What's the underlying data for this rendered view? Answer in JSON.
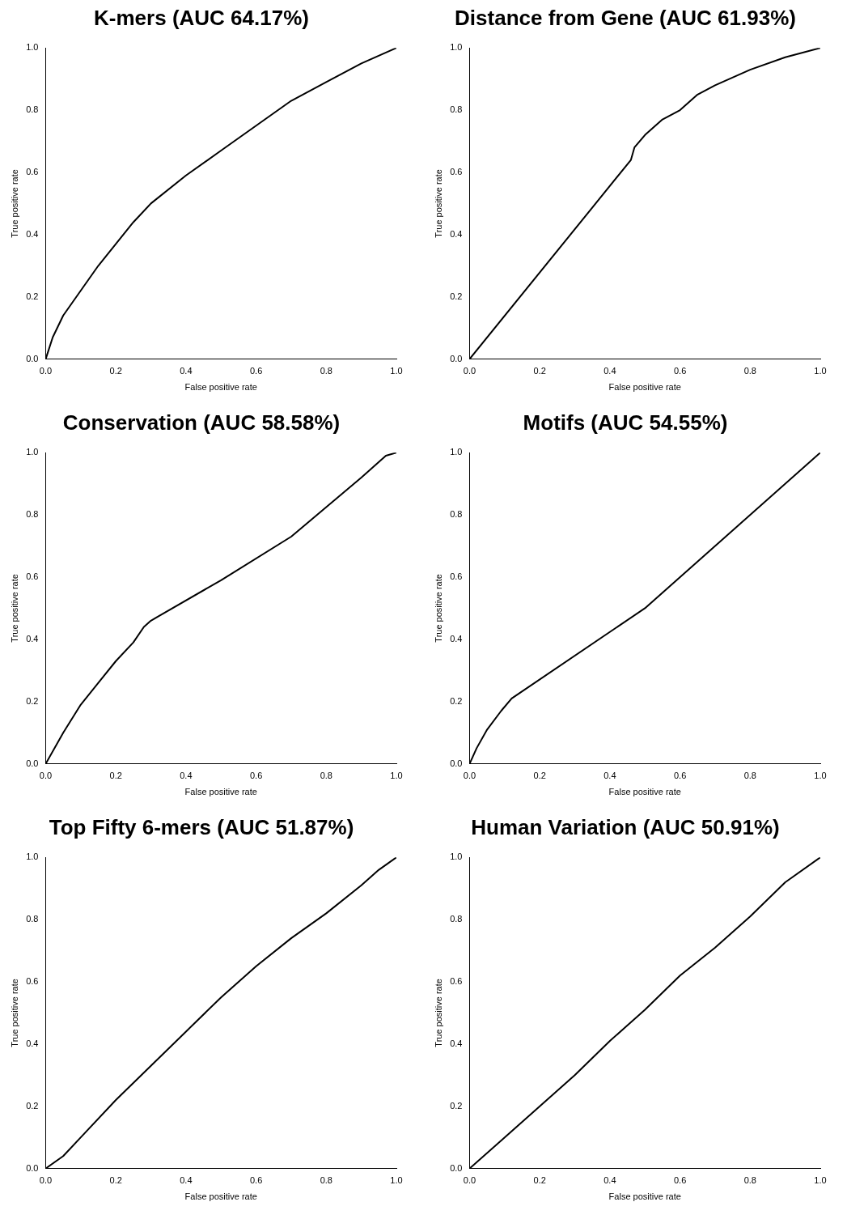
{
  "chart_data": [
    {
      "type": "line",
      "title": "K-mers (AUC 64.17%)",
      "xlabel": "False positive rate",
      "ylabel": "True positive rate",
      "xlim": [
        0,
        1
      ],
      "ylim": [
        0,
        1
      ],
      "xticks": [
        {
          "value": 0,
          "label": "0.0"
        },
        {
          "value": 0.2,
          "label": "0.2"
        },
        {
          "value": 0.4,
          "label": "0.4"
        },
        {
          "value": 0.6,
          "label": "0.6"
        },
        {
          "value": 0.8,
          "label": "0.8"
        },
        {
          "value": 1,
          "label": "1.0"
        }
      ],
      "yticks": [
        {
          "value": 0,
          "label": "0.0"
        },
        {
          "value": 0.2,
          "label": "0.2"
        },
        {
          "value": 0.4,
          "label": "0.4"
        },
        {
          "value": 0.6,
          "label": "0.6"
        },
        {
          "value": 0.8,
          "label": "0.8"
        },
        {
          "value": 1,
          "label": "1.0"
        }
      ],
      "grid": false,
      "legend": false,
      "marker": "none",
      "line_style": "solid",
      "series": [
        {
          "color": "#000000",
          "x": [
            0,
            0.02,
            0.05,
            0.1,
            0.15,
            0.2,
            0.25,
            0.3,
            0.4,
            0.5,
            0.6,
            0.7,
            0.8,
            0.9,
            1
          ],
          "values": [
            0,
            0.07,
            0.14,
            0.22,
            0.3,
            0.37,
            0.44,
            0.5,
            0.59,
            0.67,
            0.75,
            0.83,
            0.89,
            0.95,
            1
          ]
        }
      ]
    },
    {
      "type": "line",
      "title": "Distance from Gene (AUC 61.93%)",
      "xlabel": "False positive rate",
      "ylabel": "True positive rate",
      "xlim": [
        0,
        1
      ],
      "ylim": [
        0,
        1
      ],
      "xticks": [
        {
          "value": 0,
          "label": "0.0"
        },
        {
          "value": 0.2,
          "label": "0.2"
        },
        {
          "value": 0.4,
          "label": "0.4"
        },
        {
          "value": 0.6,
          "label": "0.6"
        },
        {
          "value": 0.8,
          "label": "0.8"
        },
        {
          "value": 1,
          "label": "1.0"
        }
      ],
      "yticks": [
        {
          "value": 0,
          "label": "0.0"
        },
        {
          "value": 0.2,
          "label": "0.2"
        },
        {
          "value": 0.4,
          "label": "0.4"
        },
        {
          "value": 0.6,
          "label": "0.6"
        },
        {
          "value": 0.8,
          "label": "0.8"
        },
        {
          "value": 1,
          "label": "1.0"
        }
      ],
      "grid": false,
      "legend": false,
      "marker": "none",
      "line_style": "solid",
      "series": [
        {
          "color": "#000000",
          "x": [
            0,
            0.46,
            0.47,
            0.5,
            0.55,
            0.6,
            0.65,
            0.7,
            0.8,
            0.9,
            1
          ],
          "values": [
            0,
            0.64,
            0.68,
            0.72,
            0.77,
            0.8,
            0.85,
            0.88,
            0.93,
            0.97,
            1
          ]
        }
      ]
    },
    {
      "type": "line",
      "title": "Conservation (AUC 58.58%)",
      "xlabel": "False positive rate",
      "ylabel": "True positive rate",
      "xlim": [
        0,
        1
      ],
      "ylim": [
        0,
        1
      ],
      "xticks": [
        {
          "value": 0,
          "label": "0.0"
        },
        {
          "value": 0.2,
          "label": "0.2"
        },
        {
          "value": 0.4,
          "label": "0.4"
        },
        {
          "value": 0.6,
          "label": "0.6"
        },
        {
          "value": 0.8,
          "label": "0.8"
        },
        {
          "value": 1,
          "label": "1.0"
        }
      ],
      "yticks": [
        {
          "value": 0,
          "label": "0.0"
        },
        {
          "value": 0.2,
          "label": "0.2"
        },
        {
          "value": 0.4,
          "label": "0.4"
        },
        {
          "value": 0.6,
          "label": "0.6"
        },
        {
          "value": 0.8,
          "label": "0.8"
        },
        {
          "value": 1,
          "label": "1.0"
        }
      ],
      "grid": false,
      "legend": false,
      "marker": "none",
      "line_style": "solid",
      "series": [
        {
          "color": "#000000",
          "x": [
            0,
            0.05,
            0.1,
            0.15,
            0.2,
            0.25,
            0.28,
            0.3,
            0.5,
            0.7,
            0.9,
            0.97,
            1
          ],
          "values": [
            0,
            0.1,
            0.19,
            0.26,
            0.33,
            0.39,
            0.44,
            0.46,
            0.59,
            0.73,
            0.92,
            0.99,
            1
          ]
        }
      ]
    },
    {
      "type": "line",
      "title": "Motifs (AUC 54.55%)",
      "xlabel": "False positive rate",
      "ylabel": "True positive rate",
      "xlim": [
        0,
        1
      ],
      "ylim": [
        0,
        1
      ],
      "xticks": [
        {
          "value": 0,
          "label": "0.0"
        },
        {
          "value": 0.2,
          "label": "0.2"
        },
        {
          "value": 0.4,
          "label": "0.4"
        },
        {
          "value": 0.6,
          "label": "0.6"
        },
        {
          "value": 0.8,
          "label": "0.8"
        },
        {
          "value": 1,
          "label": "1.0"
        }
      ],
      "yticks": [
        {
          "value": 0,
          "label": "0.0"
        },
        {
          "value": 0.2,
          "label": "0.2"
        },
        {
          "value": 0.4,
          "label": "0.4"
        },
        {
          "value": 0.6,
          "label": "0.6"
        },
        {
          "value": 0.8,
          "label": "0.8"
        },
        {
          "value": 1,
          "label": "1.0"
        }
      ],
      "grid": false,
      "legend": false,
      "marker": "none",
      "line_style": "solid",
      "series": [
        {
          "color": "#000000",
          "x": [
            0,
            0.02,
            0.05,
            0.09,
            0.12,
            0.5,
            1
          ],
          "values": [
            0,
            0.05,
            0.11,
            0.17,
            0.21,
            0.5,
            1
          ]
        }
      ]
    },
    {
      "type": "line",
      "title": "Top Fifty 6-mers (AUC 51.87%)",
      "xlabel": "False positive rate",
      "ylabel": "True positive rate",
      "xlim": [
        0,
        1
      ],
      "ylim": [
        0,
        1
      ],
      "xticks": [
        {
          "value": 0,
          "label": "0.0"
        },
        {
          "value": 0.2,
          "label": "0.2"
        },
        {
          "value": 0.4,
          "label": "0.4"
        },
        {
          "value": 0.6,
          "label": "0.6"
        },
        {
          "value": 0.8,
          "label": "0.8"
        },
        {
          "value": 1,
          "label": "1.0"
        }
      ],
      "yticks": [
        {
          "value": 0,
          "label": "0.0"
        },
        {
          "value": 0.2,
          "label": "0.2"
        },
        {
          "value": 0.4,
          "label": "0.4"
        },
        {
          "value": 0.6,
          "label": "0.6"
        },
        {
          "value": 0.8,
          "label": "0.8"
        },
        {
          "value": 1,
          "label": "1.0"
        }
      ],
      "grid": false,
      "legend": false,
      "marker": "none",
      "line_style": "solid",
      "series": [
        {
          "color": "#000000",
          "x": [
            0,
            0.05,
            0.1,
            0.2,
            0.3,
            0.4,
            0.5,
            0.6,
            0.7,
            0.8,
            0.9,
            0.95,
            1
          ],
          "values": [
            0,
            0.04,
            0.1,
            0.22,
            0.33,
            0.44,
            0.55,
            0.65,
            0.74,
            0.82,
            0.91,
            0.96,
            1
          ]
        }
      ]
    },
    {
      "type": "line",
      "title": "Human Variation (AUC 50.91%)",
      "xlabel": "False positive rate",
      "ylabel": "True positive rate",
      "xlim": [
        0,
        1
      ],
      "ylim": [
        0,
        1
      ],
      "xticks": [
        {
          "value": 0,
          "label": "0.0"
        },
        {
          "value": 0.2,
          "label": "0.2"
        },
        {
          "value": 0.4,
          "label": "0.4"
        },
        {
          "value": 0.6,
          "label": "0.6"
        },
        {
          "value": 0.8,
          "label": "0.8"
        },
        {
          "value": 1,
          "label": "1.0"
        }
      ],
      "yticks": [
        {
          "value": 0,
          "label": "0.0"
        },
        {
          "value": 0.2,
          "label": "0.2"
        },
        {
          "value": 0.4,
          "label": "0.4"
        },
        {
          "value": 0.6,
          "label": "0.6"
        },
        {
          "value": 0.8,
          "label": "0.8"
        },
        {
          "value": 1,
          "label": "1.0"
        }
      ],
      "grid": false,
      "legend": false,
      "marker": "none",
      "line_style": "solid",
      "series": [
        {
          "color": "#000000",
          "x": [
            0,
            0.1,
            0.2,
            0.3,
            0.4,
            0.5,
            0.6,
            0.7,
            0.8,
            0.9,
            1
          ],
          "values": [
            0,
            0.1,
            0.2,
            0.3,
            0.41,
            0.51,
            0.62,
            0.71,
            0.81,
            0.92,
            1
          ]
        }
      ]
    }
  ]
}
